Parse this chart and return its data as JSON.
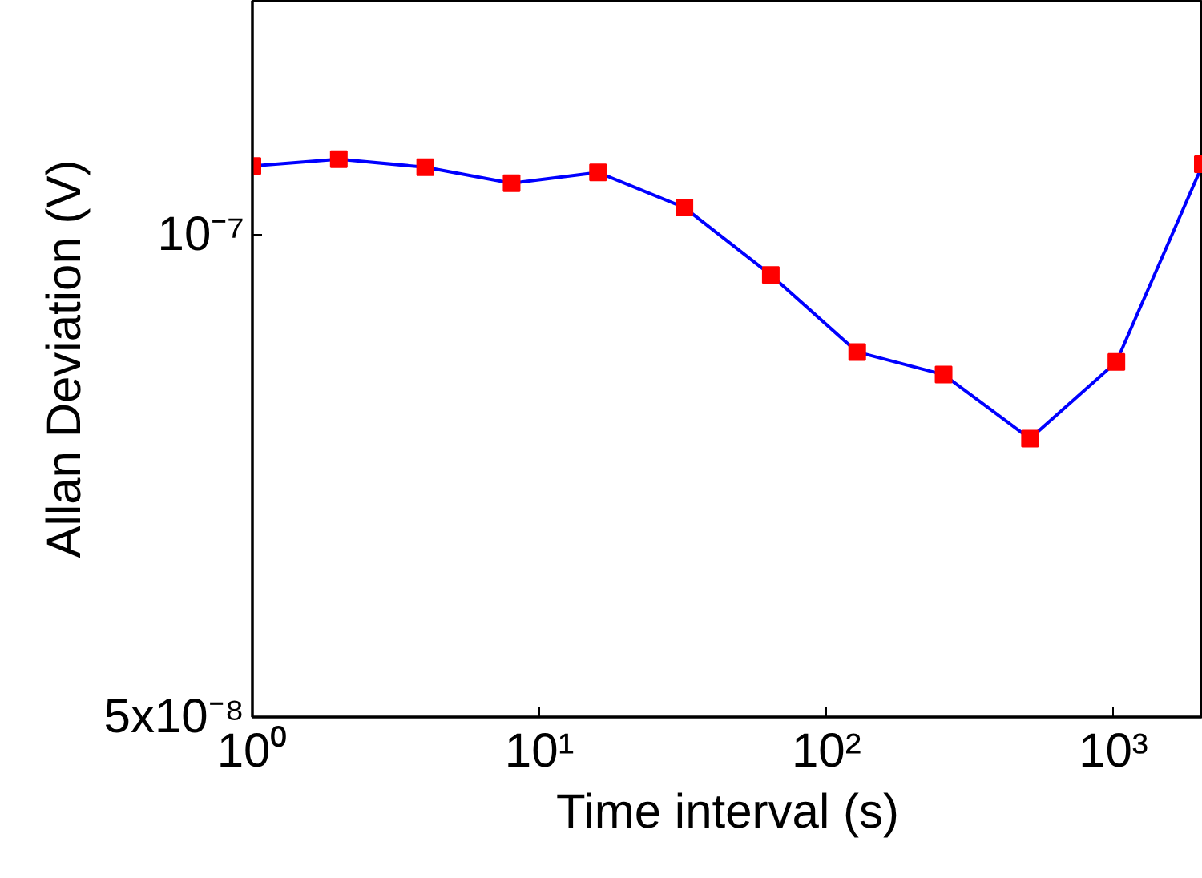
{
  "chart_data": {
    "type": "line",
    "xlabel": "Time interval (s)",
    "ylabel": "Allan Deviation (V)",
    "x": [
      1,
      2,
      4,
      8,
      16,
      32,
      64,
      128,
      256,
      512,
      1024,
      2048
    ],
    "series": [
      {
        "color": "#0000ff",
        "colors": [
          "#ff0000",
          "#ff0000",
          "#ff0000",
          "#ff0000",
          "#ff0000",
          "#ff0000",
          "#ff0000",
          "#ff0000",
          "#ff0000",
          "#ff0000",
          "#ff0000",
          "#ff0000"
        ],
        "values": [
          1.104e-07,
          1.115e-07,
          1.102e-07,
          1.077e-07,
          1.094e-07,
          1.04e-07,
          9.44e-08,
          8.45e-08,
          8.18e-08,
          7.46e-08,
          8.33e-08,
          1.107e-07
        ]
      }
    ],
    "log": "xy",
    "xlim": [
      1,
      2048
    ],
    "ylim": [
      5e-08,
      1.4e-07
    ],
    "xticks": [
      {
        "value": 1,
        "label": "10⁰"
      },
      {
        "value": 10,
        "label": "10¹"
      },
      {
        "value": 100,
        "label": "10²"
      },
      {
        "value": 1000,
        "label": "10³"
      }
    ],
    "yticks": [
      {
        "value": 5e-08,
        "label": "5x10⁻⁸"
      },
      {
        "value": 1e-07,
        "label": "10⁻⁷"
      }
    ],
    "marker": "square",
    "line_style": "solid",
    "grid": false
  }
}
